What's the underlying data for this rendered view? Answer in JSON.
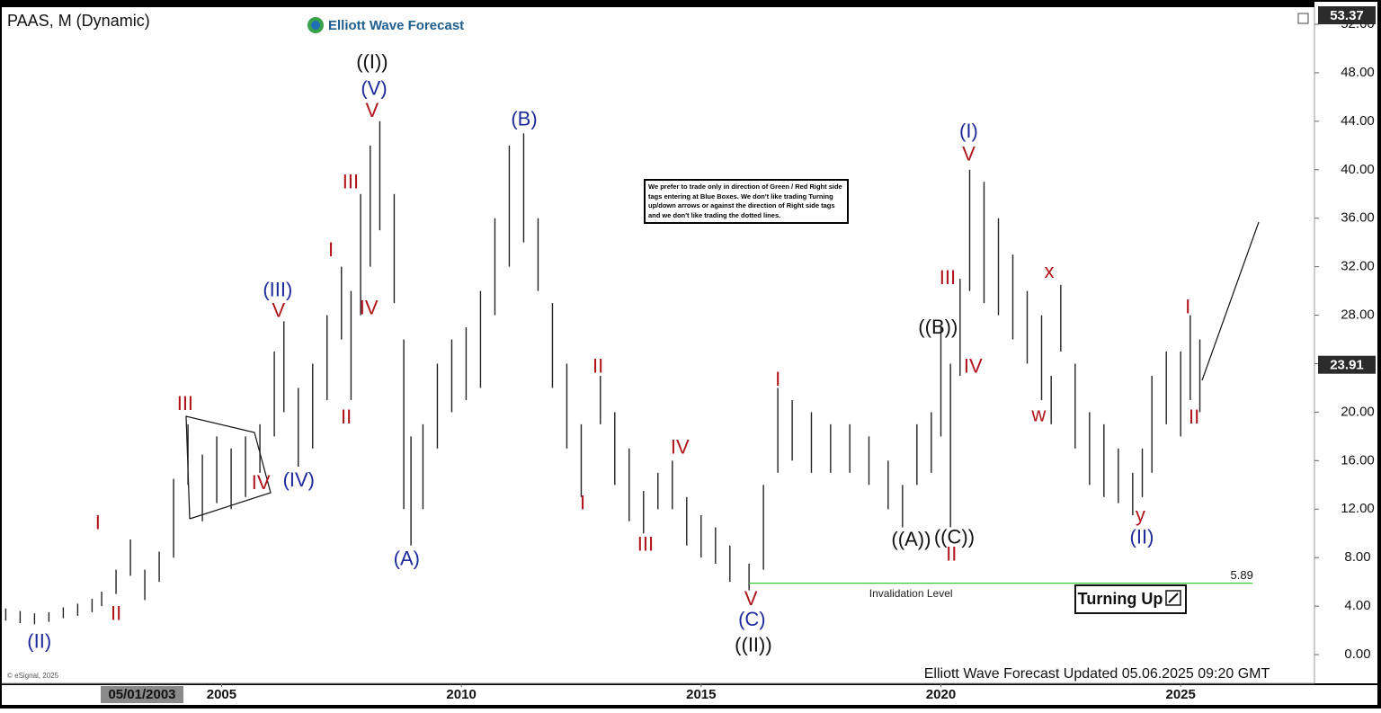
{
  "chart_data": {
    "type": "hilo",
    "title": "PAAS, M (Dynamic)",
    "brand": "Elliott Wave Forecast",
    "footer": "Elliott Wave Forecast Updated 05.06.2025 09:20 GMT",
    "source": "© eSignal, 2025",
    "cursor_label": "05/01/2003",
    "note": "We prefer to trade only in direction of Green / Red Right side tags entering at Blue Boxes. We don't like trading Turning up/down arrows or against the direction of Right side tags and we don't like trading the dotted lines.",
    "signal": "Turning Up",
    "color": "#222222",
    "xlim": [
      2000.38,
      2027.79
    ],
    "xticks": [
      2005,
      2010,
      2015,
      2020,
      2025
    ],
    "ylim": [
      -2.37,
      53.41
    ],
    "yticks": [
      {
        "value": 0,
        "label": "0.00"
      },
      {
        "value": 4,
        "label": "4.00"
      },
      {
        "value": 8,
        "label": "8.00"
      },
      {
        "value": 12,
        "label": "12.00"
      },
      {
        "value": 16,
        "label": "16.00"
      },
      {
        "value": 20,
        "label": "20.00"
      },
      {
        "value": 24,
        "label": "24.00"
      },
      {
        "value": 28,
        "label": "28.00"
      },
      {
        "value": 32,
        "label": "32.00"
      },
      {
        "value": 36,
        "label": "36.00"
      },
      {
        "value": 40,
        "label": "40.00"
      },
      {
        "value": 44,
        "label": "44.00"
      },
      {
        "value": 48,
        "label": "48.00"
      },
      {
        "value": 52,
        "label": "52.00"
      }
    ],
    "price_tags": [
      53.37,
      23.91
    ],
    "x": [
      2000.5,
      2000.8,
      2001.1,
      2001.4,
      2001.7,
      2002.0,
      2002.3,
      2002.5,
      2002.8,
      2003.1,
      2003.4,
      2003.7,
      2004.0,
      2004.3,
      2004.6,
      2004.9,
      2005.2,
      2005.5,
      2005.8,
      2006.1,
      2006.3,
      2006.6,
      2006.9,
      2007.2,
      2007.5,
      2007.7,
      2007.9,
      2008.1,
      2008.3,
      2008.6,
      2008.8,
      2008.95,
      2009.2,
      2009.5,
      2009.8,
      2010.1,
      2010.4,
      2010.7,
      2011.0,
      2011.3,
      2011.6,
      2011.9,
      2012.2,
      2012.5,
      2012.9,
      2013.2,
      2013.5,
      2013.8,
      2014.1,
      2014.4,
      2014.7,
      2015.0,
      2015.3,
      2015.6,
      2016.0,
      2016.3,
      2016.6,
      2016.9,
      2017.3,
      2017.7,
      2018.1,
      2018.5,
      2018.9,
      2019.2,
      2019.5,
      2019.8,
      2020.0,
      2020.2,
      2020.4,
      2020.6,
      2020.9,
      2021.2,
      2021.5,
      2021.8,
      2022.1,
      2022.3,
      2022.5,
      2022.8,
      2023.1,
      2023.4,
      2023.7,
      2024.0,
      2024.2,
      2024.4,
      2024.7,
      2025.0,
      2025.2,
      2025.4
    ],
    "high": [
      3.8,
      3.6,
      3.4,
      3.5,
      3.9,
      4.2,
      4.6,
      5.2,
      7.0,
      9.5,
      7.0,
      8.5,
      14.5,
      19.0,
      16.5,
      18.0,
      17.0,
      18.0,
      19.0,
      25.0,
      27.5,
      22.0,
      24.0,
      28.0,
      32.0,
      30.0,
      38.0,
      42.0,
      44.0,
      38.0,
      26.0,
      18.0,
      19.0,
      24.0,
      26.0,
      27.0,
      30.0,
      36.0,
      42.0,
      43.0,
      36.0,
      29.0,
      24.0,
      19.0,
      23.0,
      20.0,
      17.0,
      13.5,
      15.0,
      16.0,
      13.0,
      11.5,
      10.5,
      9.0,
      7.5,
      14.0,
      22.0,
      21.0,
      20.0,
      19.0,
      19.0,
      18.0,
      16.0,
      14.0,
      19.0,
      20.0,
      27.0,
      24.0,
      31.0,
      40.0,
      39.0,
      36.0,
      33.0,
      30.0,
      28.0,
      23.0,
      30.5,
      24.0,
      20.0,
      19.0,
      17.0,
      15.0,
      17.0,
      23.0,
      25.0,
      25.0,
      28.0,
      26.0
    ],
    "low": [
      2.8,
      2.6,
      2.5,
      2.7,
      3.0,
      3.2,
      3.5,
      4.0,
      5.0,
      6.5,
      4.5,
      6.0,
      8.0,
      14.0,
      11.0,
      12.5,
      12.0,
      13.0,
      15.0,
      18.0,
      20.0,
      15.5,
      17.0,
      21.0,
      26.0,
      21.0,
      28.0,
      32.0,
      35.0,
      29.0,
      12.0,
      9.0,
      12.0,
      17.0,
      20.0,
      21.0,
      22.0,
      28.0,
      32.0,
      34.0,
      30.0,
      22.0,
      17.0,
      13.0,
      19.0,
      14.0,
      11.0,
      10.0,
      12.0,
      12.0,
      9.0,
      8.0,
      7.5,
      6.0,
      5.3,
      7.0,
      15.0,
      16.0,
      15.0,
      15.0,
      15.0,
      14.0,
      12.0,
      10.5,
      14.0,
      15.0,
      18.0,
      10.5,
      23.0,
      30.0,
      29.0,
      28.0,
      26.0,
      24.0,
      21.0,
      19.0,
      25.0,
      17.0,
      14.0,
      13.0,
      12.5,
      11.5,
      13.0,
      15.0,
      19.0,
      18.0,
      21.0,
      20.0
    ],
    "invalidation": {
      "label": "Invalidation Level",
      "level": 5.89,
      "from": 2016.0,
      "to": 2026.5,
      "color": "#33cc33"
    },
    "annotations": [
      {
        "text": "(II)",
        "x": 2001.2,
        "y": 1.0,
        "color": "#1c2b99"
      },
      {
        "text": "I",
        "x": 2002.42,
        "y": 10.8,
        "color": "#b0141a"
      },
      {
        "text": "II",
        "x": 2002.8,
        "y": 3.3,
        "color": "#b0141a"
      },
      {
        "text": "III",
        "x": 2004.24,
        "y": 20.6,
        "color": "#b0141a"
      },
      {
        "text": "IV",
        "x": 2005.82,
        "y": 14.1,
        "color": "#b0141a"
      },
      {
        "text": "(III)",
        "x": 2006.17,
        "y": 30.0,
        "color": "#1c2b99"
      },
      {
        "text": "V",
        "x": 2006.19,
        "y": 28.3,
        "color": "#b0141a"
      },
      {
        "text": "(IV)",
        "x": 2006.61,
        "y": 14.3,
        "color": "#1c2b99"
      },
      {
        "text": "I",
        "x": 2007.28,
        "y": 33.3,
        "color": "#b0141a"
      },
      {
        "text": "II",
        "x": 2007.6,
        "y": 19.5,
        "color": "#b0141a"
      },
      {
        "text": "III",
        "x": 2007.69,
        "y": 38.9,
        "color": "#b0141a"
      },
      {
        "text": "IV",
        "x": 2008.07,
        "y": 28.5,
        "color": "#b0141a"
      },
      {
        "text": "V",
        "x": 2008.14,
        "y": 44.8,
        "color": "#b0141a"
      },
      {
        "text": "(V)",
        "x": 2008.18,
        "y": 46.6,
        "color": "#1c2b99"
      },
      {
        "text": "((I))",
        "x": 2008.14,
        "y": 48.8,
        "color": "#111111"
      },
      {
        "text": "(A)",
        "x": 2008.86,
        "y": 7.8,
        "color": "#1c2b99"
      },
      {
        "text": "(B)",
        "x": 2011.31,
        "y": 44.1,
        "color": "#1c2b99"
      },
      {
        "text": "I",
        "x": 2012.53,
        "y": 12.4,
        "color": "#b0141a"
      },
      {
        "text": "II",
        "x": 2012.85,
        "y": 23.7,
        "color": "#b0141a"
      },
      {
        "text": "III",
        "x": 2013.84,
        "y": 9.0,
        "color": "#b0141a"
      },
      {
        "text": "IV",
        "x": 2014.56,
        "y": 17.0,
        "color": "#b0141a"
      },
      {
        "text": "V",
        "x": 2016.04,
        "y": 4.5,
        "color": "#b0141a"
      },
      {
        "text": "(C)",
        "x": 2016.06,
        "y": 2.8,
        "color": "#1c2b99"
      },
      {
        "text": "((II))",
        "x": 2016.09,
        "y": 0.7,
        "color": "#111111"
      },
      {
        "text": "I",
        "x": 2016.6,
        "y": 22.6,
        "color": "#b0141a"
      },
      {
        "text": "((A))",
        "x": 2019.38,
        "y": 9.4,
        "color": "#111111"
      },
      {
        "text": "((B))",
        "x": 2019.94,
        "y": 26.9,
        "color": "#111111"
      },
      {
        "text": "((C))",
        "x": 2020.28,
        "y": 9.6,
        "color": "#111111"
      },
      {
        "text": "II",
        "x": 2020.22,
        "y": 8.2,
        "color": "#b0141a"
      },
      {
        "text": "III",
        "x": 2020.14,
        "y": 31.0,
        "color": "#b0141a"
      },
      {
        "text": "IV",
        "x": 2020.67,
        "y": 23.7,
        "color": "#b0141a"
      },
      {
        "text": "V",
        "x": 2020.58,
        "y": 41.2,
        "color": "#b0141a"
      },
      {
        "text": "(I)",
        "x": 2020.58,
        "y": 43.1,
        "color": "#1c2b99"
      },
      {
        "text": "w",
        "x": 2022.04,
        "y": 19.7,
        "color": "#b0141a"
      },
      {
        "text": "x",
        "x": 2022.26,
        "y": 31.5,
        "color": "#b0141a"
      },
      {
        "text": "y",
        "x": 2024.16,
        "y": 11.4,
        "color": "#b0141a"
      },
      {
        "text": "(II)",
        "x": 2024.19,
        "y": 9.6,
        "color": "#1c2b99"
      },
      {
        "text": "I",
        "x": 2025.15,
        "y": 28.6,
        "color": "#b0141a"
      },
      {
        "text": "II",
        "x": 2025.28,
        "y": 19.5,
        "color": "#b0141a"
      }
    ]
  }
}
